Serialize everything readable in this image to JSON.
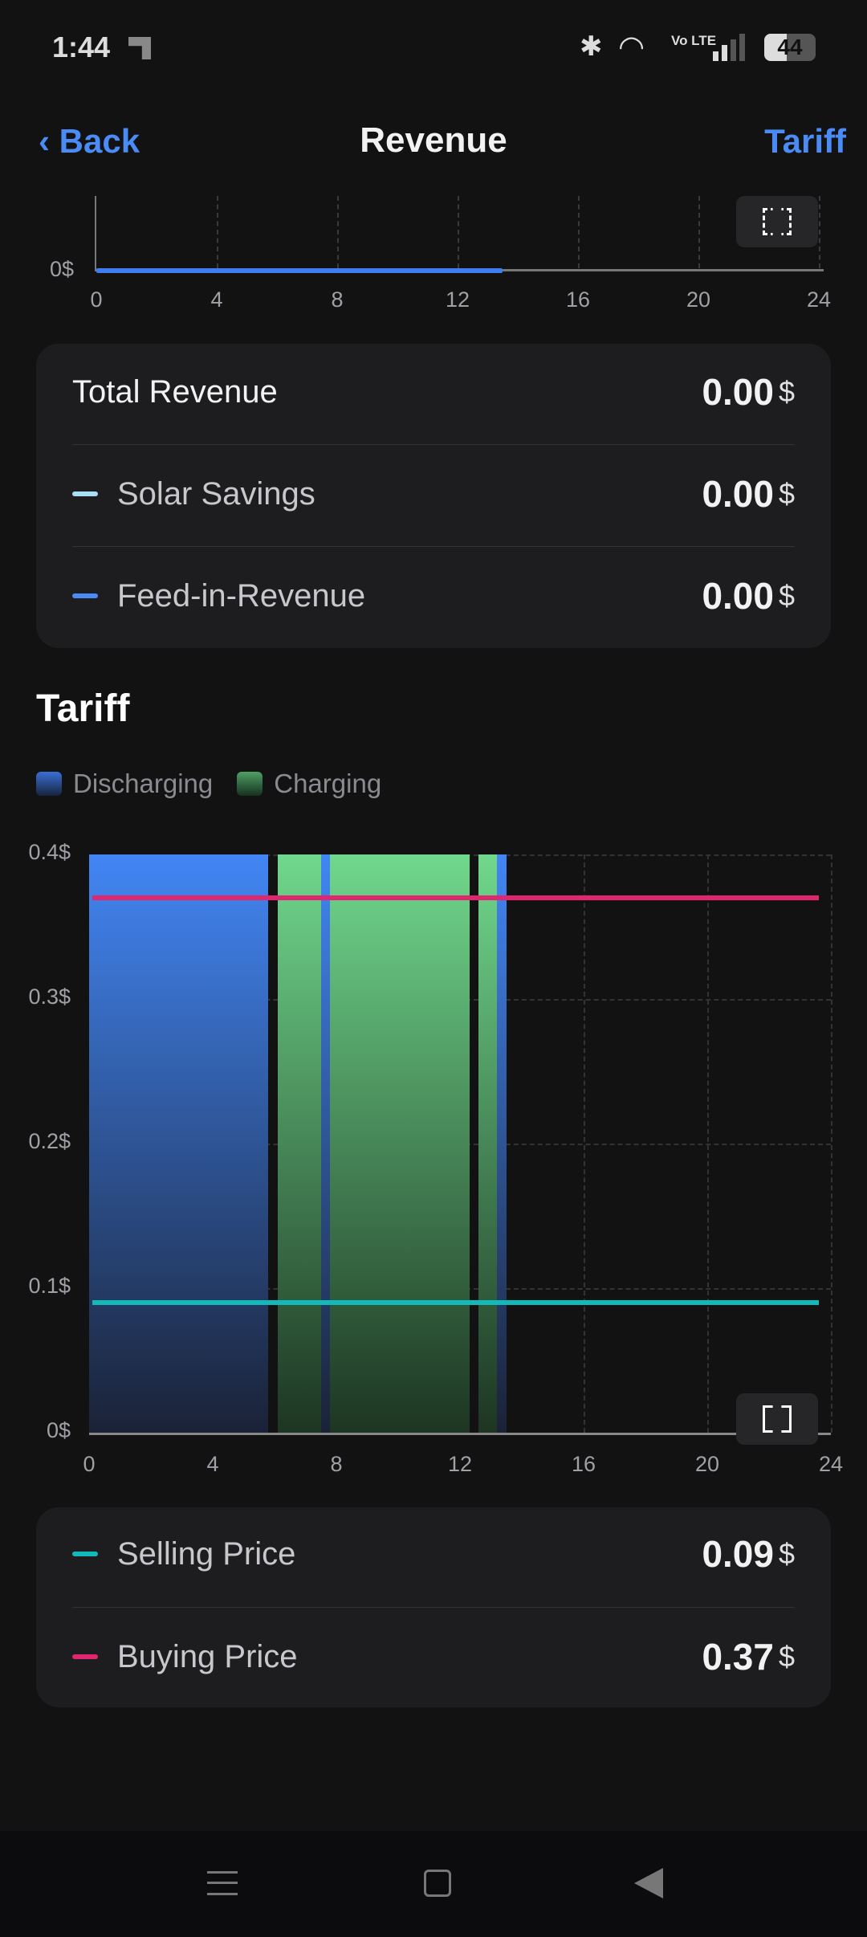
{
  "status": {
    "time": "1:44",
    "battery": "44",
    "network": "Vo LTE"
  },
  "header": {
    "back": "Back",
    "title": "Revenue",
    "right": "Tariff"
  },
  "revenue_chart": {
    "y_label": "0$",
    "x_ticks": [
      "0",
      "4",
      "8",
      "12",
      "16",
      "20",
      "24"
    ],
    "revenue_until_hour": 13.5
  },
  "summary": {
    "total": {
      "label": "Total Revenue",
      "value": "0.00",
      "unit": "$"
    },
    "solar": {
      "label": "Solar Savings",
      "value": "0.00",
      "unit": "$",
      "color": "#a9dcf5"
    },
    "feed": {
      "label": "Feed-in-Revenue",
      "value": "0.00",
      "unit": "$",
      "color": "#4a8bf5"
    }
  },
  "tariff": {
    "heading": "Tariff",
    "legend": [
      {
        "label": "Discharging",
        "color": "#3f7ef0"
      },
      {
        "label": "Charging",
        "color": "#6fd98c"
      }
    ]
  },
  "chart_data": {
    "type": "area",
    "x_ticks": [
      "0",
      "4",
      "8",
      "12",
      "16",
      "20",
      "24"
    ],
    "y_ticks": [
      "0$",
      "0.1$",
      "0.2$",
      "0.3$",
      "0.4$"
    ],
    "xlim": [
      0,
      24
    ],
    "ylim": [
      0,
      0.4
    ],
    "periods": [
      {
        "mode": "discharging",
        "start": 0,
        "end": 5.8
      },
      {
        "mode": "charging",
        "start": 6.1,
        "end": 7.5
      },
      {
        "mode": "discharging",
        "start": 7.5,
        "end": 7.8
      },
      {
        "mode": "charging",
        "start": 7.8,
        "end": 12.3
      },
      {
        "mode": "charging",
        "start": 12.6,
        "end": 13.2
      },
      {
        "mode": "discharging",
        "start": 13.2,
        "end": 13.5
      }
    ],
    "series": [
      {
        "name": "Buying Price",
        "value": 0.37,
        "x": [
          0,
          23.5
        ],
        "color": "#e0266e"
      },
      {
        "name": "Selling Price",
        "value": 0.09,
        "x": [
          0,
          23.5
        ],
        "color": "#13b8b8"
      }
    ]
  },
  "prices": {
    "selling": {
      "label": "Selling Price",
      "value": "0.09",
      "unit": "$",
      "color": "#13b8b8"
    },
    "buying": {
      "label": "Buying Price",
      "value": "0.37",
      "unit": "$",
      "color": "#e0266e"
    }
  }
}
